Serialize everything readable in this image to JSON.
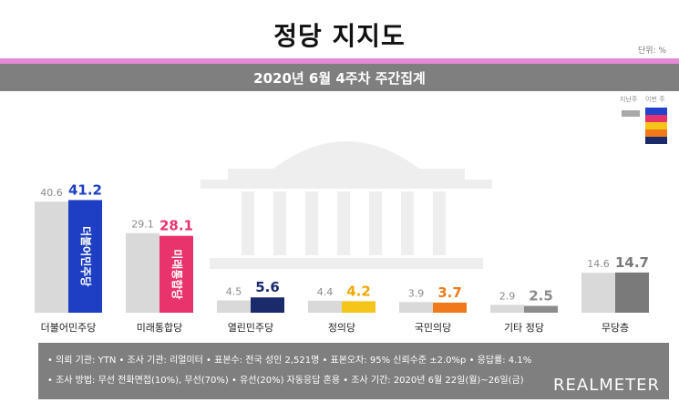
{
  "header": {
    "title": "정당 지지도",
    "unit": "단위: %",
    "subtitle": "2020년 6월 4주차 주간집계"
  },
  "legend": {
    "prev_label": "지난주",
    "curr_label": "이번 주"
  },
  "colors": {
    "prev_bar": "#d9d9d9",
    "header_bar": "#7f7f7f",
    "pink_accent": "#e68ad8",
    "legend_swatches": [
      "#2244cc",
      "#e6336b",
      "#f5c51a",
      "#f07a1a",
      "#1a2a6a"
    ]
  },
  "chart_data": {
    "type": "bar",
    "title": "정당 지지도",
    "categories": [
      "더불어민주당",
      "미래통합당",
      "열린민주당",
      "정의당",
      "국민의당",
      "기타 정당",
      "무당층"
    ],
    "series": [
      {
        "name": "지난주",
        "values": [
          40.6,
          29.1,
          4.5,
          4.4,
          3.9,
          2.9,
          14.6
        ]
      },
      {
        "name": "이번 주",
        "values": [
          41.2,
          28.1,
          5.6,
          4.2,
          3.7,
          2.5,
          14.7
        ]
      }
    ],
    "current_colors": [
      "#1e3fc4",
      "#e8336c",
      "#1a2b6b",
      "#f5c51a",
      "#f07a1a",
      "#8c8c8c",
      "#7a7a7a"
    ],
    "current_label_colors": [
      "#1e3fc4",
      "#e8336c",
      "#1a2b6b",
      "#f0a800",
      "#f07a1a",
      "#8c8c8c",
      "#7a7a7a"
    ],
    "bar_labels": [
      "더불어민주당",
      "미래통합당",
      "",
      "정의당",
      "",
      "",
      ""
    ],
    "ylim": [
      0,
      45
    ]
  },
  "footer": {
    "line1": "• 의뢰 기관: YTN • 조사 기관: 리얼미터 • 표본수: 전국 성인 2,521명 • 표본오차: 95% 신뢰수준 ±2.0%p • 응답률: 4.1%",
    "line2": "• 조사 방법: 무선 전화면접(10%), 무선(70%) • 유선(20%) 자동응답 혼용 • 조사 기간: 2020년 6월 22일(월)~26일(금)",
    "brand": "REALMETER"
  }
}
